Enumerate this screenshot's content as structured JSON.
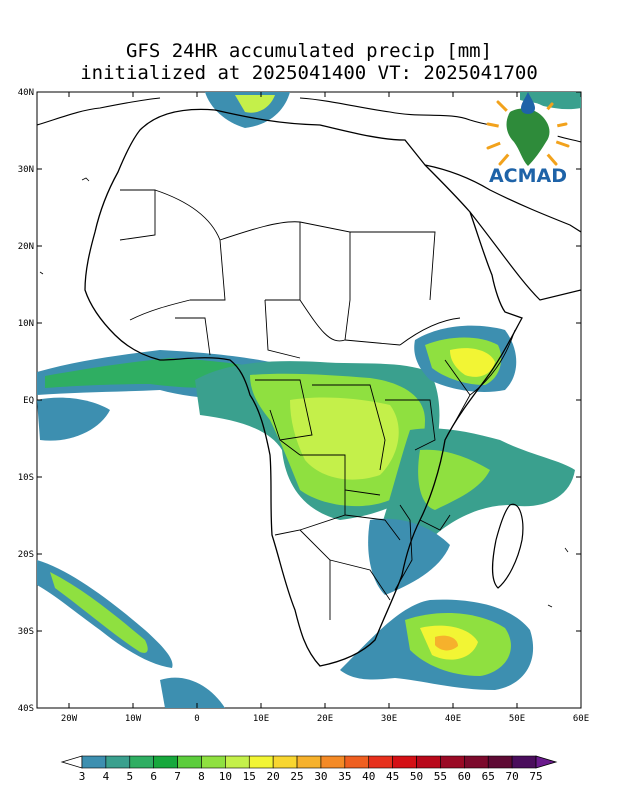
{
  "title": {
    "line1": "GFS 24HR accumulated precip [mm]",
    "line2": "initialized at 2025041400 VT: 2025041700"
  },
  "logo": {
    "text": "ACMAD"
  },
  "axes": {
    "lat_labels": [
      "40N",
      "30N",
      "20N",
      "10N",
      "EQ",
      "10S",
      "20S",
      "30S",
      "40S"
    ],
    "lon_labels": [
      "20W",
      "10W",
      "0",
      "10E",
      "20E",
      "30E",
      "40E",
      "50E",
      "60E"
    ]
  },
  "colorbar": {
    "labels": [
      "3",
      "4",
      "5",
      "6",
      "7",
      "8",
      "10",
      "15",
      "20",
      "25",
      "30",
      "35",
      "40",
      "45",
      "50",
      "55",
      "60",
      "65",
      "70",
      "75"
    ],
    "colors": [
      "#ffffff",
      "#3d8fb0",
      "#3aa08e",
      "#2fae62",
      "#17a83c",
      "#5ccd3c",
      "#8fe040",
      "#c4f04a",
      "#f2f534",
      "#f8d630",
      "#f6b12c",
      "#f48a26",
      "#ef5f20",
      "#e7301c",
      "#d41015",
      "#b8081a",
      "#9a0a25",
      "#7c0a2c",
      "#5e0a34",
      "#4a0d5c",
      "#6a1a8c"
    ]
  },
  "colors": {
    "lvl1": "#3d8fb0",
    "lvl2": "#3aa08e",
    "lvl3": "#17a83c",
    "lvl4": "#8fe040",
    "lvl5": "#f2f534",
    "lvl6": "#f6b12c"
  }
}
